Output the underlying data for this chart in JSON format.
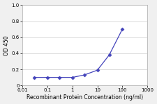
{
  "x": [
    0.03,
    0.1,
    0.3,
    1,
    3,
    10,
    30,
    100
  ],
  "y": [
    0.1,
    0.1,
    0.1,
    0.1,
    0.13,
    0.19,
    0.38,
    0.7
  ],
  "line_color": "#4444bb",
  "marker": "D",
  "marker_color": "#4444bb",
  "marker_size": 2.5,
  "marker_edge_width": 0.5,
  "line_width": 0.9,
  "xlabel": "Recombinant Protein Concentration (ng/ml)",
  "ylabel": "OD 450",
  "xlim": [
    0.01,
    1000
  ],
  "ylim": [
    0,
    1.0
  ],
  "yticks": [
    0,
    0.2,
    0.4,
    0.6,
    0.8,
    1.0
  ],
  "xticks": [
    0.01,
    0.1,
    1,
    10,
    100,
    1000
  ],
  "xtick_labels": [
    "0.01",
    "0.1",
    "1",
    "10",
    "100",
    "1000"
  ],
  "plot_bg_color": "#ffffff",
  "fig_bg_color": "#f0f0f0",
  "grid_color": "#cccccc",
  "spine_color": "#aaaaaa",
  "label_fontsize": 5.5,
  "tick_fontsize": 5.0
}
